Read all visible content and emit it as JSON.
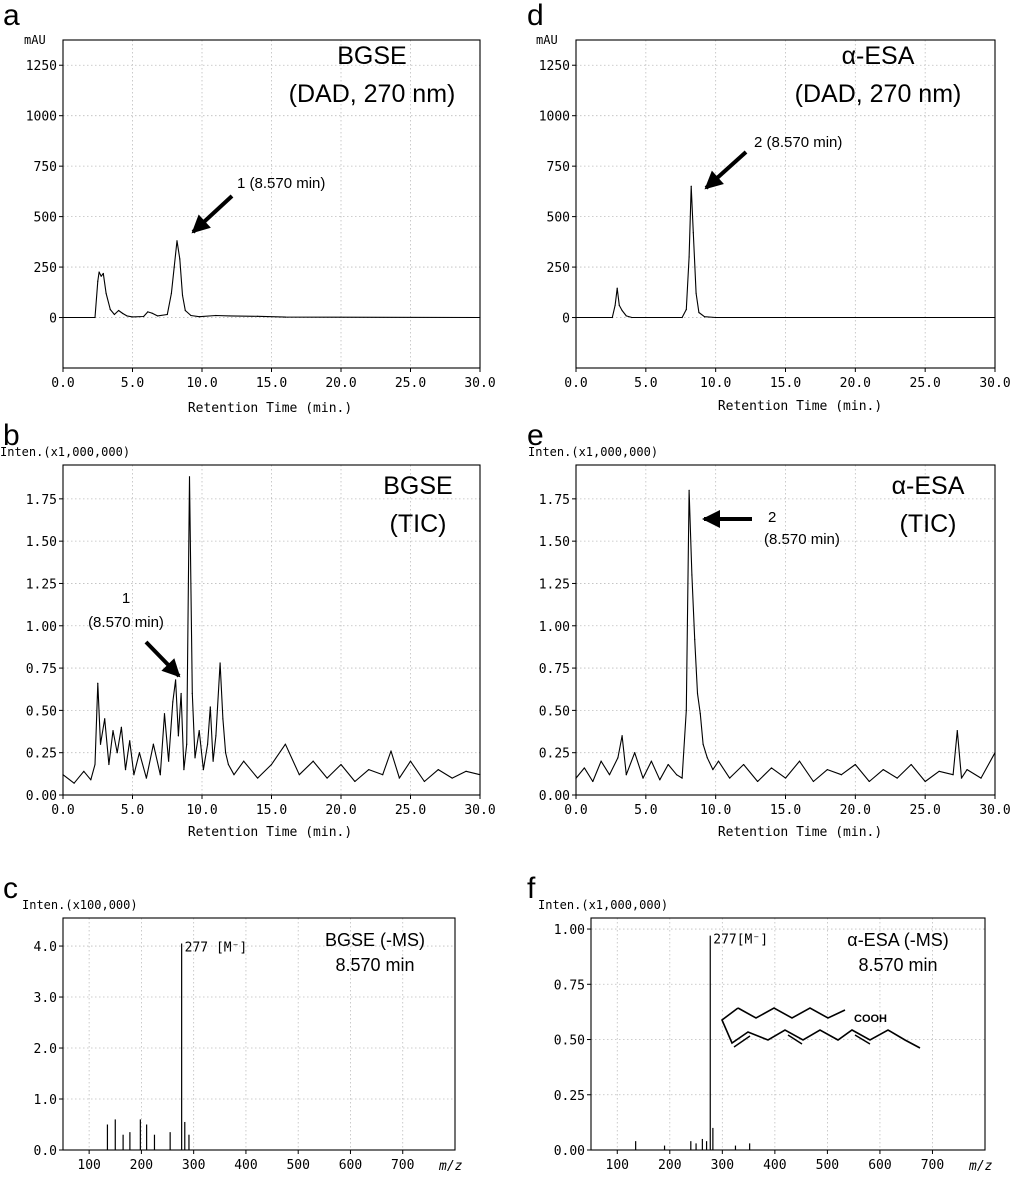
{
  "chart_data": [
    {
      "panel": "a",
      "type": "line",
      "title_lines": [
        "BGSE",
        "(DAD, 270 nm)"
      ],
      "ylabel": "mAU",
      "xlabel": "Retention Time (min.)",
      "xlim": [
        0,
        30
      ],
      "ylim": [
        -250,
        1375
      ],
      "xticks": [
        "0.0",
        "5.0",
        "10.0",
        "15.0",
        "20.0",
        "25.0",
        "30.0"
      ],
      "yticks": [
        "0",
        "250",
        "500",
        "750",
        "1000",
        "1250"
      ],
      "annotation": "1  (8.570 min)",
      "series": [
        {
          "name": "BGSE DAD 270 nm",
          "x": [
            0,
            2.3,
            2.5,
            2.6,
            2.75,
            2.9,
            3.1,
            3.4,
            3.7,
            4.0,
            4.3,
            4.6,
            5.0,
            5.8,
            6.1,
            6.4,
            6.8,
            7.5,
            7.8,
            8.0,
            8.2,
            8.4,
            8.6,
            8.8,
            9.2,
            9.8,
            11,
            12,
            14,
            16,
            30
          ],
          "y": [
            0,
            0,
            180,
            225,
            205,
            218,
            120,
            40,
            15,
            35,
            20,
            8,
            3,
            5,
            28,
            22,
            8,
            15,
            120,
            250,
            380,
            290,
            110,
            35,
            10,
            4,
            10,
            8,
            6,
            2,
            0
          ]
        }
      ]
    },
    {
      "panel": "b",
      "type": "line",
      "title_lines": [
        "BGSE",
        "(TIC)"
      ],
      "ylabel": "Inten.(x1,000,000)",
      "xlabel": "Retention Time (min.)",
      "xlim": [
        0,
        30
      ],
      "ylim": [
        0,
        1.95
      ],
      "xticks": [
        "0.0",
        "5.0",
        "10.0",
        "15.0",
        "20.0",
        "25.0",
        "30.0"
      ],
      "yticks": [
        "0.00",
        "0.25",
        "0.50",
        "0.75",
        "1.00",
        "1.25",
        "1.50",
        "1.75"
      ],
      "annotation_lines": [
        "1",
        "(8.570 min)"
      ],
      "series": [
        {
          "name": "BGSE TIC",
          "x": [
            0,
            0.8,
            1.5,
            2.0,
            2.3,
            2.5,
            2.7,
            3.0,
            3.3,
            3.6,
            3.9,
            4.2,
            4.5,
            4.8,
            5.1,
            5.5,
            6.0,
            6.5,
            7.0,
            7.3,
            7.6,
            7.9,
            8.1,
            8.3,
            8.5,
            8.7,
            8.9,
            9.1,
            9.3,
            9.5,
            9.8,
            10.1,
            10.4,
            10.6,
            10.8,
            11.0,
            11.3,
            11.5,
            11.7,
            11.9,
            12.3,
            13.0,
            14.0,
            15.0,
            16.0,
            17.0,
            18.0,
            19.0,
            20.0,
            21.0,
            22.0,
            23.0,
            23.6,
            24.2,
            25.0,
            26.0,
            27.0,
            28.0,
            29.0,
            30.0
          ],
          "y": [
            0.12,
            0.07,
            0.14,
            0.09,
            0.18,
            0.66,
            0.3,
            0.45,
            0.18,
            0.38,
            0.25,
            0.4,
            0.15,
            0.32,
            0.12,
            0.25,
            0.1,
            0.3,
            0.12,
            0.48,
            0.2,
            0.55,
            0.68,
            0.35,
            0.6,
            0.15,
            0.3,
            1.88,
            0.6,
            0.22,
            0.38,
            0.15,
            0.3,
            0.52,
            0.2,
            0.35,
            0.78,
            0.45,
            0.25,
            0.18,
            0.12,
            0.2,
            0.1,
            0.18,
            0.3,
            0.12,
            0.2,
            0.1,
            0.18,
            0.08,
            0.15,
            0.12,
            0.26,
            0.1,
            0.2,
            0.08,
            0.15,
            0.1,
            0.14,
            0.12
          ]
        }
      ]
    },
    {
      "panel": "c",
      "type": "bar",
      "title_lines": [
        "BGSE  (-MS)",
        "8.570 min"
      ],
      "ylabel": "Inten.(x100,000)",
      "xlabel_prefix": "m/z",
      "xlim": [
        50,
        800
      ],
      "ylim": [
        0,
        4.55
      ],
      "xticks": [
        "100",
        "200",
        "300",
        "400",
        "500",
        "600",
        "700"
      ],
      "yticks": [
        "0.0",
        "1.0",
        "2.0",
        "3.0",
        "4.0"
      ],
      "peak_label": "277 [M⁻]",
      "x": [
        135,
        150,
        165,
        178,
        198,
        210,
        225,
        255,
        277,
        283,
        291
      ],
      "values": [
        0.5,
        0.6,
        0.3,
        0.35,
        0.6,
        0.5,
        0.3,
        0.35,
        4.05,
        0.55,
        0.3
      ]
    },
    {
      "panel": "d",
      "type": "line",
      "title_lines": [
        "α-ESA",
        "(DAD, 270 nm)"
      ],
      "ylabel": "mAU",
      "xlabel": "Retention Time (min.)",
      "xlim": [
        0,
        30
      ],
      "ylim": [
        -250,
        1375
      ],
      "xticks": [
        "0.0",
        "5.0",
        "10.0",
        "15.0",
        "20.0",
        "25.0",
        "30.0"
      ],
      "yticks": [
        "0",
        "250",
        "500",
        "750",
        "1000",
        "1250"
      ],
      "annotation": "2  (8.570 min)",
      "series": [
        {
          "name": "α-ESA DAD 270 nm",
          "x": [
            0,
            2.6,
            2.8,
            2.95,
            3.1,
            3.3,
            3.6,
            4.0,
            7.6,
            7.9,
            8.1,
            8.25,
            8.4,
            8.6,
            8.8,
            9.2,
            10,
            30
          ],
          "y": [
            0,
            0,
            60,
            145,
            60,
            35,
            8,
            0,
            0,
            40,
            300,
            650,
            420,
            120,
            25,
            4,
            0,
            0
          ]
        }
      ]
    },
    {
      "panel": "e",
      "type": "line",
      "title_lines": [
        "α-ESA",
        "(TIC)"
      ],
      "ylabel": "Inten.(x1,000,000)",
      "xlabel": "Retention Time (min.)",
      "xlim": [
        0,
        30
      ],
      "ylim": [
        0,
        1.95
      ],
      "xticks": [
        "0.0",
        "5.0",
        "10.0",
        "15.0",
        "20.0",
        "25.0",
        "30.0"
      ],
      "yticks": [
        "0.00",
        "0.25",
        "0.50",
        "0.75",
        "1.00",
        "1.25",
        "1.50",
        "1.75"
      ],
      "annotation_lines": [
        "2",
        "(8.570 min)"
      ],
      "series": [
        {
          "name": "α-ESA TIC",
          "x": [
            0,
            0.6,
            1.2,
            1.8,
            2.4,
            3.0,
            3.3,
            3.6,
            4.2,
            4.8,
            5.4,
            6.0,
            6.6,
            7.2,
            7.6,
            7.9,
            8.1,
            8.3,
            8.5,
            8.7,
            8.9,
            9.1,
            9.4,
            9.8,
            10.2,
            11,
            12,
            13,
            14,
            15,
            16,
            17,
            18,
            19,
            20,
            21,
            22,
            23,
            24,
            25,
            26,
            27,
            27.3,
            27.6,
            28,
            29,
            30
          ],
          "y": [
            0.1,
            0.16,
            0.08,
            0.2,
            0.12,
            0.22,
            0.35,
            0.12,
            0.25,
            0.1,
            0.2,
            0.09,
            0.18,
            0.12,
            0.1,
            0.5,
            1.8,
            1.3,
            0.92,
            0.6,
            0.48,
            0.3,
            0.22,
            0.15,
            0.2,
            0.1,
            0.18,
            0.08,
            0.16,
            0.1,
            0.2,
            0.08,
            0.15,
            0.12,
            0.18,
            0.08,
            0.15,
            0.1,
            0.18,
            0.08,
            0.14,
            0.12,
            0.38,
            0.1,
            0.15,
            0.1,
            0.25
          ]
        }
      ]
    },
    {
      "panel": "f",
      "type": "bar",
      "title_lines": [
        "α-ESA  (-MS)",
        "8.570 min"
      ],
      "ylabel": "Inten.(x1,000,000)",
      "xlabel_prefix": "m/z",
      "xlim": [
        50,
        800
      ],
      "ylim": [
        0,
        1.05
      ],
      "xticks": [
        "100",
        "200",
        "300",
        "400",
        "500",
        "600",
        "700"
      ],
      "yticks": [
        "0.00",
        "0.25",
        "0.50",
        "0.75",
        "1.00"
      ],
      "peak_label": "277[M⁻]",
      "structure_label": "COOH",
      "x": [
        135,
        190,
        240,
        250,
        262,
        270,
        277,
        282,
        325,
        352
      ],
      "values": [
        0.04,
        0.02,
        0.04,
        0.03,
        0.05,
        0.04,
        0.97,
        0.1,
        0.02,
        0.03
      ]
    }
  ]
}
